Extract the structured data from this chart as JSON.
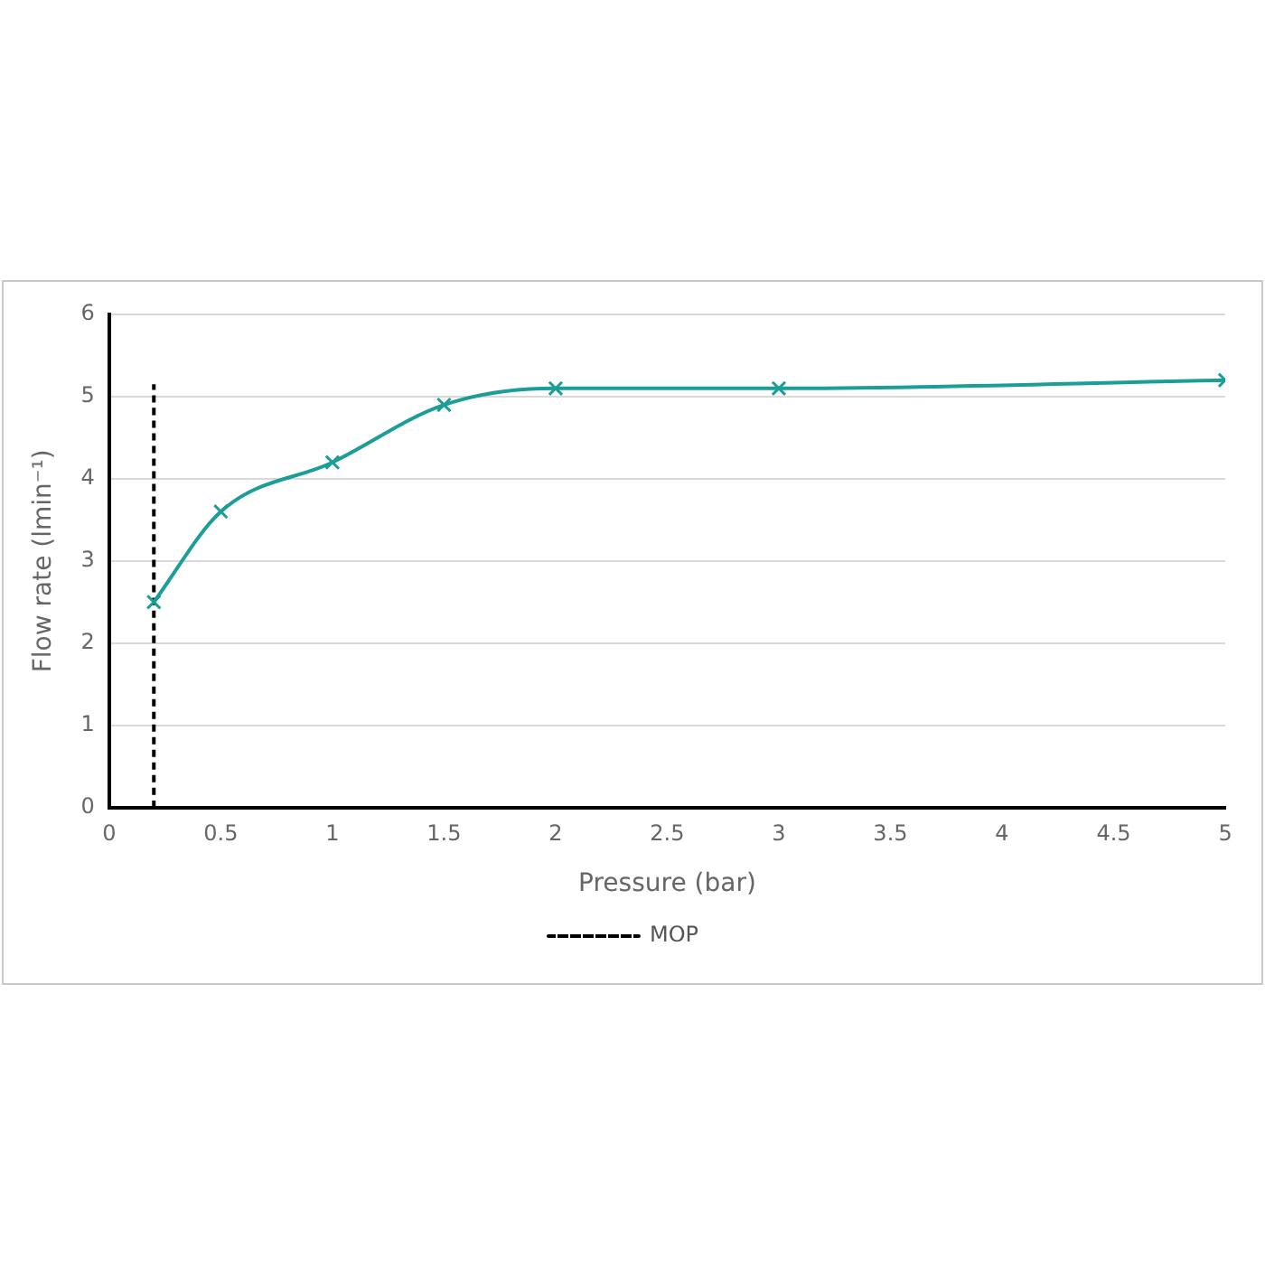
{
  "chart_data": {
    "type": "line",
    "xlabel": "Pressure (bar)",
    "ylabel": "Flow rate (lmin⁻¹)",
    "xlim": [
      0,
      5
    ],
    "xticks": [
      0,
      0.5,
      1,
      1.5,
      2,
      2.5,
      3,
      3.5,
      4,
      4.5,
      5
    ],
    "ylim": [
      0,
      6
    ],
    "yticks": [
      0,
      1,
      2,
      3,
      4,
      5,
      6
    ],
    "grid": "y",
    "legend": "bottom",
    "series": [
      {
        "color": "#1a9e97",
        "x": [
          0.2,
          0.5,
          1,
          1.5,
          2,
          3,
          5
        ],
        "values": [
          2.5,
          3.6,
          4.2,
          4.9,
          5.1,
          5.1,
          5.2
        ],
        "marker": "cross",
        "line_style": "solid"
      },
      {
        "name": "MOP",
        "color": "#000000",
        "x": [
          0.2,
          0.2
        ],
        "values": [
          0,
          5.15
        ],
        "marker": "none",
        "line_style": "dashed"
      }
    ]
  }
}
